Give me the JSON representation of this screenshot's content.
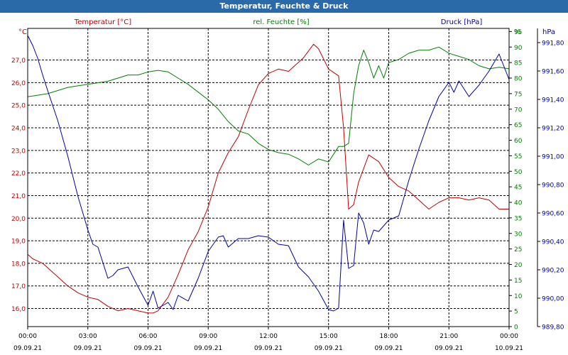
{
  "window": {
    "title": "Temperatur, Feuchte & Druck"
  },
  "colors": {
    "temperature": "#c00000",
    "humidity": "#008000",
    "pressure": "#0000a0",
    "grid": "#000000",
    "frame": "#000000"
  },
  "chart_data": {
    "type": "line",
    "title": "Temperatur, Feuchte & Druck",
    "x_ticks": [
      {
        "time": "00:00",
        "date": "09.09.21",
        "h": 0
      },
      {
        "time": "03:00",
        "date": "09.09.21",
        "h": 3
      },
      {
        "time": "06:00",
        "date": "09.09.21",
        "h": 6
      },
      {
        "time": "09:00",
        "date": "09.09.21",
        "h": 9
      },
      {
        "time": "12:00",
        "date": "09.09.21",
        "h": 12
      },
      {
        "time": "15:00",
        "date": "09.09.21",
        "h": 15
      },
      {
        "time": "18:00",
        "date": "09.09.21",
        "h": 18
      },
      {
        "time": "21:00",
        "date": "09.09.21",
        "h": 21
      },
      {
        "time": "00:00",
        "date": "10.09.21",
        "h": 24
      }
    ],
    "xlim": [
      0,
      24
    ],
    "axes": {
      "temperature": {
        "label": "Temperatur [°C]",
        "unit": "°C",
        "ylim": [
          15.2,
          28.4
        ],
        "ticks": [
          "16,0",
          "17,0",
          "18,0",
          "19,0",
          "20,0",
          "21,0",
          "22,0",
          "23,0",
          "24,0",
          "25,0",
          "26,0",
          "27,0"
        ],
        "tick_values": [
          16,
          17,
          18,
          19,
          20,
          21,
          22,
          23,
          24,
          25,
          26,
          27
        ]
      },
      "humidity": {
        "label": "rel. Feuchte [%]",
        "unit": "%",
        "ylim": [
          0,
          96
        ],
        "ticks": [
          "0",
          "5",
          "10",
          "15",
          "20",
          "25",
          "30",
          "35",
          "40",
          "45",
          "50",
          "55",
          "60",
          "65",
          "70",
          "75",
          "80",
          "85",
          "90",
          "95"
        ],
        "tick_values": [
          0,
          5,
          10,
          15,
          20,
          25,
          30,
          35,
          40,
          45,
          50,
          55,
          60,
          65,
          70,
          75,
          80,
          85,
          90,
          95
        ]
      },
      "pressure": {
        "label": "Druck [hPa]",
        "unit": "hPa",
        "ylim": [
          989.8,
          991.9
        ],
        "ticks": [
          "989,80",
          "990,00",
          "990,20",
          "990,40",
          "990,60",
          "990,80",
          "991,00",
          "991,20",
          "991,40",
          "991,60",
          "991,80"
        ],
        "tick_values": [
          989.8,
          990.0,
          990.2,
          990.4,
          990.6,
          990.8,
          991.0,
          991.2,
          991.4,
          991.6,
          991.8
        ]
      }
    },
    "series": [
      {
        "name": "Temperatur [°C]",
        "axis": "temperature",
        "color": "#c00000",
        "x": [
          0,
          0.25,
          0.5,
          0.75,
          1,
          1.5,
          2,
          2.5,
          3,
          3.5,
          4,
          4.5,
          5,
          5.5,
          6,
          6.25,
          6.5,
          7,
          7.5,
          8,
          8.5,
          9,
          9.5,
          10,
          10.5,
          11,
          11.5,
          12,
          12.5,
          13,
          13.5,
          13.75,
          14,
          14.25,
          14.5,
          15,
          15.5,
          15.75,
          16,
          16.25,
          16.5,
          17,
          17.5,
          18,
          18.5,
          19,
          19.5,
          20,
          20.5,
          21,
          21.5,
          22,
          22.5,
          23,
          23.5,
          24
        ],
        "values": [
          18.4,
          18.2,
          18.1,
          18.0,
          17.8,
          17.4,
          17.0,
          16.7,
          16.5,
          16.4,
          16.1,
          15.9,
          16.0,
          15.9,
          15.8,
          15.8,
          15.9,
          16.5,
          17.5,
          18.6,
          19.4,
          20.5,
          22.0,
          22.9,
          23.6,
          24.8,
          25.9,
          26.4,
          26.6,
          26.5,
          26.9,
          27.1,
          27.4,
          27.7,
          27.5,
          26.6,
          26.3,
          24.0,
          20.4,
          20.6,
          21.6,
          22.8,
          22.5,
          21.8,
          21.4,
          21.2,
          20.8,
          20.4,
          20.7,
          20.9,
          20.9,
          20.8,
          20.9,
          20.8,
          20.4,
          20.4
        ]
      },
      {
        "name": "rel. Feuchte [%]",
        "axis": "humidity",
        "color": "#008000",
        "x": [
          0,
          0.5,
          1,
          1.5,
          2,
          2.5,
          3,
          3.5,
          4,
          4.5,
          5,
          5.5,
          6,
          6.5,
          7,
          7.5,
          8,
          8.5,
          9,
          9.5,
          10,
          10.5,
          11,
          11.5,
          12,
          12.5,
          13,
          13.5,
          14,
          14.5,
          15,
          15.5,
          15.75,
          16,
          16.25,
          16.5,
          16.75,
          17,
          17.25,
          17.5,
          17.75,
          18,
          18.5,
          19,
          19.5,
          20,
          20.5,
          21,
          21.5,
          22,
          22.5,
          23,
          23.5,
          24
        ],
        "values": [
          74,
          74.5,
          75,
          76,
          77,
          77.5,
          78,
          78.5,
          79,
          80,
          81,
          81,
          82,
          82.5,
          82,
          80,
          78,
          75.5,
          73,
          70,
          66,
          63,
          62,
          59,
          57,
          56,
          55.5,
          54,
          52,
          54,
          53,
          58,
          58,
          59,
          75,
          84,
          89,
          85,
          80,
          84,
          80,
          85,
          86,
          88,
          89,
          89,
          90,
          88,
          87,
          86,
          84,
          83,
          83.5,
          83
        ]
      },
      {
        "name": "Druck [hPa]",
        "axis": "pressure",
        "color": "#0000a0",
        "x": [
          0,
          0.25,
          0.5,
          0.75,
          1,
          1.5,
          2,
          2.5,
          3,
          3.25,
          3.5,
          4,
          4.25,
          4.5,
          5,
          5.5,
          6,
          6.25,
          6.5,
          7,
          7.25,
          7.5,
          8,
          8.5,
          9,
          9.5,
          9.75,
          10,
          10.5,
          11,
          11.5,
          12,
          12.5,
          13,
          13.5,
          14,
          14.5,
          15,
          15.25,
          15.5,
          15.75,
          16,
          16.25,
          16.5,
          16.75,
          17,
          17.25,
          17.5,
          18,
          18.5,
          19,
          19.5,
          20,
          20.5,
          21,
          21.25,
          21.5,
          22,
          22.5,
          23,
          23.5,
          24
        ],
        "values": [
          991.85,
          991.78,
          991.69,
          991.57,
          991.46,
          991.25,
          991.0,
          990.72,
          990.48,
          990.38,
          990.36,
          990.14,
          990.16,
          990.2,
          990.22,
          990.08,
          989.95,
          990.05,
          989.93,
          989.97,
          989.92,
          990.02,
          989.98,
          990.14,
          990.33,
          990.43,
          990.44,
          990.36,
          990.42,
          990.42,
          990.44,
          990.43,
          990.38,
          990.37,
          990.22,
          990.15,
          990.05,
          989.92,
          989.91,
          989.93,
          990.55,
          990.21,
          990.23,
          990.6,
          990.53,
          990.38,
          990.48,
          990.47,
          990.55,
          990.58,
          990.83,
          991.05,
          991.25,
          991.42,
          991.52,
          991.45,
          991.53,
          991.42,
          991.5,
          991.6,
          991.72,
          991.54
        ]
      }
    ]
  }
}
